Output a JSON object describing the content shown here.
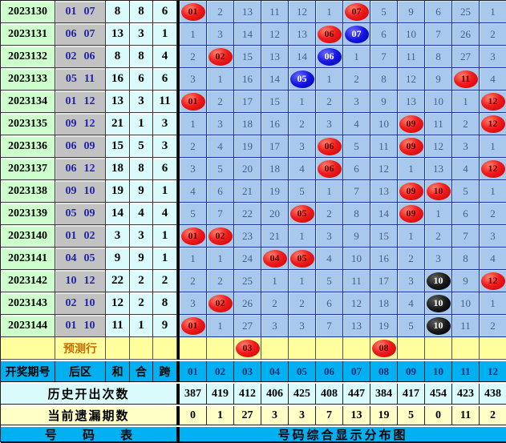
{
  "table": {
    "header": {
      "period": "开奖期号",
      "back": "后区",
      "sum": "和",
      "combine": "合",
      "span": "跨",
      "numbers": [
        "01",
        "02",
        "03",
        "04",
        "05",
        "06",
        "07",
        "08",
        "09",
        "10",
        "11",
        "12"
      ]
    },
    "rows": [
      {
        "period": "2023130",
        "back": [
          "01",
          "07"
        ],
        "sum": "8",
        "combine": "8",
        "span": "6",
        "cells": [
          {
            "v": "01",
            "m": "red"
          },
          "2",
          "13",
          "11",
          "12",
          "1",
          {
            "v": "07",
            "m": "red"
          },
          "5",
          "9",
          "6",
          "25",
          "1"
        ]
      },
      {
        "period": "2023131",
        "back": [
          "06",
          "07"
        ],
        "sum": "13",
        "combine": "3",
        "span": "1",
        "cells": [
          "1",
          "3",
          "14",
          "12",
          "13",
          {
            "v": "06",
            "m": "red"
          },
          {
            "v": "07",
            "m": "blue"
          },
          "6",
          "10",
          "7",
          "26",
          "2"
        ]
      },
      {
        "period": "2023132",
        "back": [
          "02",
          "06"
        ],
        "sum": "8",
        "combine": "8",
        "span": "4",
        "cells": [
          "2",
          {
            "v": "02",
            "m": "red"
          },
          "15",
          "13",
          "14",
          {
            "v": "06",
            "m": "blue"
          },
          "1",
          "7",
          "11",
          "8",
          "27",
          "3"
        ]
      },
      {
        "period": "2023133",
        "back": [
          "05",
          "11"
        ],
        "sum": "16",
        "combine": "6",
        "span": "6",
        "cells": [
          "3",
          "1",
          "16",
          "14",
          {
            "v": "05",
            "m": "blue"
          },
          "1",
          "2",
          "8",
          "12",
          "9",
          {
            "v": "11",
            "m": "red"
          },
          "4"
        ]
      },
      {
        "period": "2023134",
        "back": [
          "01",
          "12"
        ],
        "sum": "13",
        "combine": "3",
        "span": "11",
        "cells": [
          {
            "v": "01",
            "m": "red"
          },
          "2",
          "17",
          "15",
          "1",
          "2",
          "3",
          "9",
          "13",
          "10",
          "1",
          {
            "v": "12",
            "m": "red"
          }
        ]
      },
      {
        "period": "2023135",
        "back": [
          "09",
          "12"
        ],
        "sum": "21",
        "combine": "1",
        "span": "3",
        "cells": [
          "1",
          "3",
          "18",
          "16",
          "2",
          "3",
          "4",
          "10",
          {
            "v": "09",
            "m": "red"
          },
          "11",
          "2",
          {
            "v": "12",
            "m": "red"
          }
        ]
      },
      {
        "period": "2023136",
        "back": [
          "06",
          "09"
        ],
        "sum": "15",
        "combine": "5",
        "span": "3",
        "cells": [
          "2",
          "4",
          "19",
          "17",
          "3",
          {
            "v": "06",
            "m": "red"
          },
          "5",
          "11",
          {
            "v": "09",
            "m": "red"
          },
          "12",
          "3",
          "1"
        ]
      },
      {
        "period": "2023137",
        "back": [
          "06",
          "12"
        ],
        "sum": "18",
        "combine": "8",
        "span": "6",
        "cells": [
          "3",
          "5",
          "20",
          "18",
          "4",
          {
            "v": "06",
            "m": "red"
          },
          "6",
          "12",
          "1",
          "13",
          "4",
          {
            "v": "12",
            "m": "red"
          }
        ]
      },
      {
        "period": "2023138",
        "back": [
          "09",
          "10"
        ],
        "sum": "19",
        "combine": "9",
        "span": "1",
        "cells": [
          "4",
          "6",
          "21",
          "19",
          "5",
          "1",
          "7",
          "13",
          {
            "v": "09",
            "m": "red"
          },
          {
            "v": "10",
            "m": "red"
          },
          "5",
          "1"
        ]
      },
      {
        "period": "2023139",
        "back": [
          "05",
          "09"
        ],
        "sum": "14",
        "combine": "4",
        "span": "4",
        "cells": [
          "5",
          "7",
          "22",
          "20",
          {
            "v": "05",
            "m": "red"
          },
          "2",
          "8",
          "14",
          {
            "v": "09",
            "m": "red"
          },
          "1",
          "6",
          "2"
        ]
      },
      {
        "period": "2023140",
        "back": [
          "01",
          "02"
        ],
        "sum": "3",
        "combine": "3",
        "span": "1",
        "cells": [
          {
            "v": "01",
            "m": "red"
          },
          {
            "v": "02",
            "m": "red"
          },
          "23",
          "21",
          "1",
          "3",
          "9",
          "15",
          "1",
          "2",
          "7",
          "3"
        ]
      },
      {
        "period": "2023141",
        "back": [
          "04",
          "05"
        ],
        "sum": "9",
        "combine": "9",
        "span": "1",
        "cells": [
          "1",
          "1",
          "24",
          {
            "v": "04",
            "m": "red"
          },
          {
            "v": "05",
            "m": "red"
          },
          "4",
          "10",
          "16",
          "2",
          "3",
          "8",
          "4"
        ]
      },
      {
        "period": "2023142",
        "back": [
          "10",
          "12"
        ],
        "sum": "22",
        "combine": "2",
        "span": "2",
        "cells": [
          "2",
          "2",
          "25",
          "1",
          "1",
          "5",
          "11",
          "17",
          "3",
          {
            "v": "10",
            "m": "black"
          },
          "9",
          {
            "v": "12",
            "m": "red"
          }
        ]
      },
      {
        "period": "2023143",
        "back": [
          "02",
          "10"
        ],
        "sum": "12",
        "combine": "2",
        "span": "8",
        "cells": [
          "3",
          {
            "v": "02",
            "m": "red"
          },
          "26",
          "2",
          "2",
          "6",
          "12",
          "18",
          "4",
          {
            "v": "10",
            "m": "black"
          },
          "10",
          "1"
        ]
      },
      {
        "period": "2023144",
        "back": [
          "01",
          "10"
        ],
        "sum": "11",
        "combine": "1",
        "span": "9",
        "cells": [
          {
            "v": "01",
            "m": "red"
          },
          "1",
          "27",
          "3",
          "3",
          "7",
          "13",
          "19",
          "5",
          {
            "v": "10",
            "m": "black"
          },
          "11",
          "2"
        ]
      }
    ],
    "prediction": {
      "label": "预测行",
      "cells": [
        "",
        "",
        {
          "v": "03",
          "m": "red"
        },
        "",
        "",
        "",
        "",
        {
          "v": "08",
          "m": "red"
        },
        "",
        "",
        "",
        ""
      ]
    },
    "stats": [
      {
        "label": "历史开出次数",
        "values": [
          "387",
          "419",
          "412",
          "406",
          "425",
          "408",
          "447",
          "384",
          "417",
          "454",
          "423",
          "438"
        ]
      },
      {
        "label": "当前遗漏期数",
        "values": [
          "0",
          "1",
          "27",
          "3",
          "3",
          "7",
          "13",
          "19",
          "5",
          "0",
          "11",
          "2"
        ]
      }
    ],
    "footer": {
      "left": "号 码 表",
      "right": "号码综合显示分布图"
    }
  },
  "colors": {
    "period_bg": "#ccffcc",
    "back_bg": "#c2c2c2",
    "shk_bg": "#d9fbfb",
    "grid_bg": "#a8c8ec",
    "header_bg": "#00b0f0",
    "prediction_bg": "#ffff9e",
    "history_bg": "#d9fbfb",
    "omission_bg": "#ffffc6",
    "hit_red": "#e01010",
    "hit_blue": "#0000c8",
    "hit_black": "#0a0a0a",
    "back_text": "#2121aa"
  },
  "chart_data": {
    "type": "table",
    "title": "号码综合显示分布图",
    "column_headers": [
      "开奖期号",
      "后区",
      "和",
      "合",
      "跨",
      "01",
      "02",
      "03",
      "04",
      "05",
      "06",
      "07",
      "08",
      "09",
      "10",
      "11",
      "12"
    ],
    "periods": [
      "2023130",
      "2023131",
      "2023132",
      "2023133",
      "2023134",
      "2023135",
      "2023136",
      "2023137",
      "2023138",
      "2023139",
      "2023140",
      "2023141",
      "2023142",
      "2023143",
      "2023144"
    ],
    "back_numbers": [
      [
        "01",
        "07"
      ],
      [
        "06",
        "07"
      ],
      [
        "02",
        "06"
      ],
      [
        "05",
        "11"
      ],
      [
        "01",
        "12"
      ],
      [
        "09",
        "12"
      ],
      [
        "06",
        "09"
      ],
      [
        "06",
        "12"
      ],
      [
        "09",
        "10"
      ],
      [
        "05",
        "09"
      ],
      [
        "01",
        "02"
      ],
      [
        "04",
        "05"
      ],
      [
        "10",
        "12"
      ],
      [
        "02",
        "10"
      ],
      [
        "01",
        "10"
      ]
    ],
    "sum": [
      8,
      13,
      8,
      16,
      13,
      21,
      15,
      18,
      19,
      14,
      3,
      9,
      22,
      12,
      11
    ],
    "combine": [
      8,
      3,
      8,
      6,
      3,
      1,
      5,
      8,
      9,
      4,
      3,
      9,
      2,
      2,
      1
    ],
    "span": [
      6,
      1,
      4,
      6,
      11,
      3,
      3,
      6,
      1,
      4,
      1,
      1,
      2,
      8,
      9
    ],
    "history_counts": [
      387,
      419,
      412,
      406,
      425,
      408,
      447,
      384,
      417,
      454,
      423,
      438
    ],
    "current_omission": [
      0,
      1,
      27,
      3,
      3,
      7,
      13,
      19,
      5,
      0,
      11,
      2
    ],
    "predicted_numbers": [
      "03",
      "08"
    ]
  }
}
